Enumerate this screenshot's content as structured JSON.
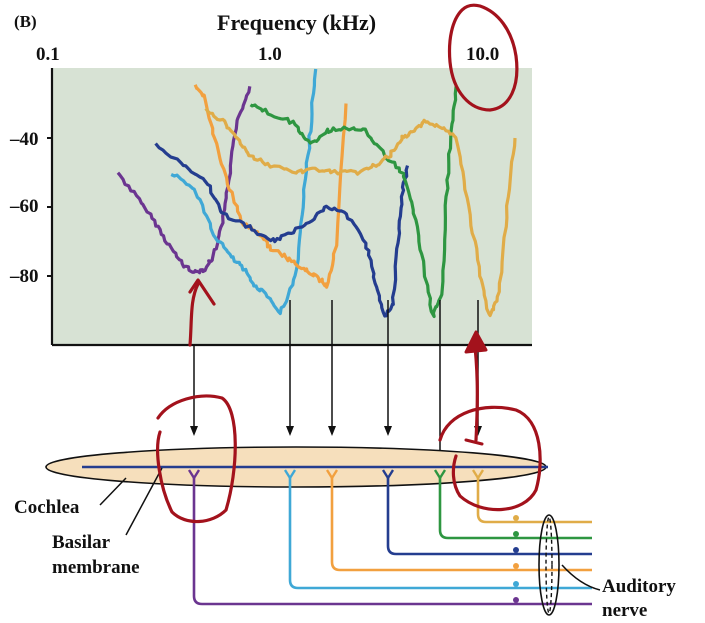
{
  "figure": {
    "panel_label": "(B)",
    "top_axis_title": "Frequency (kHz)",
    "x_ticks": [
      "0.1",
      "1.0",
      "10.0"
    ],
    "y_ticks": [
      "–40",
      "–60",
      "–80"
    ]
  },
  "labels": {
    "cochlea": "Cochlea",
    "basilar_line1": "Basilar",
    "basilar_line2": "membrane",
    "nerve_line1": "Auditory",
    "nerve_line2": "nerve"
  },
  "colors": {
    "plot_bg": "#d7e2d4",
    "cochlea_fill": "#f6dfbc",
    "annotation_red": "#a3121c",
    "purple": "#6b3590",
    "light_blue": "#3fa8d6",
    "orange": "#f2a03f",
    "dark_blue": "#243d8f",
    "green": "#2e9641",
    "gold": "#e0ac48"
  },
  "chart_data": {
    "type": "line",
    "x_scale": "log",
    "xlim": [
      0.1,
      20
    ],
    "ylim": [
      -100,
      -20
    ],
    "x_ticks": [
      0.1,
      1.0,
      10.0
    ],
    "y_ticks": [
      -40,
      -60,
      -80
    ],
    "grid": false,
    "series": [
      {
        "color": "purple",
        "x": [
          0.2,
          0.25,
          0.3,
          0.35,
          0.4,
          0.45,
          0.5,
          0.55,
          0.6,
          0.65,
          0.7,
          0.8
        ],
        "y": [
          -50,
          -58,
          -65,
          -72,
          -77,
          -79,
          -78,
          -74,
          -65,
          -50,
          -35,
          -25
        ]
      },
      {
        "color": "light_blue",
        "x": [
          0.35,
          0.45,
          0.55,
          0.65,
          0.75,
          0.85,
          0.95,
          1.1,
          1.3,
          1.4,
          1.5,
          1.6
        ],
        "y": [
          -50,
          -55,
          -68,
          -74,
          -78,
          -83,
          -85,
          -91,
          -80,
          -60,
          -40,
          -20
        ]
      },
      {
        "color": "orange",
        "x": [
          0.45,
          0.5,
          0.55,
          0.65,
          0.75,
          0.9,
          1.0,
          1.2,
          1.4,
          1.6,
          1.8,
          2.0,
          2.2
        ],
        "y": [
          -25,
          -28,
          -40,
          -55,
          -65,
          -68,
          -72,
          -75,
          -78,
          -80,
          -83,
          -70,
          -30
        ]
      },
      {
        "color": "dark_blue",
        "x": [
          0.3,
          0.4,
          0.5,
          0.6,
          0.8,
          1.0,
          1.2,
          1.5,
          1.8,
          2.2,
          2.7,
          3.0,
          3.3,
          3.6,
          3.8,
          4.0,
          4.2
        ],
        "y": [
          -42,
          -48,
          -52,
          -62,
          -66,
          -70,
          -68,
          -64,
          -60,
          -62,
          -70,
          -82,
          -92,
          -88,
          -70,
          -55,
          -48
        ]
      },
      {
        "color": "green",
        "x": [
          0.8,
          1.0,
          1.3,
          1.5,
          1.8,
          2.2,
          2.7,
          3.3,
          4.0,
          4.5,
          5.0,
          5.5,
          6.0,
          6.3,
          6.6,
          7.0
        ],
        "y": [
          -30,
          -33,
          -36,
          -42,
          -38,
          -37,
          -38,
          -45,
          -50,
          -62,
          -78,
          -92,
          -85,
          -60,
          -40,
          -25
        ]
      },
      {
        "color": "gold",
        "x": [
          0.5,
          0.6,
          0.7,
          0.8,
          1.0,
          1.3,
          1.6,
          2.0,
          2.5,
          3.0,
          3.5,
          4.0,
          4.5,
          5.0,
          6.0,
          7.0,
          8.0,
          9.0,
          10.0,
          11.0,
          12.0,
          13.0
        ],
        "y": [
          -32,
          -35,
          -40,
          -45,
          -48,
          -50,
          -49,
          -50,
          -50,
          -48,
          -45,
          -40,
          -38,
          -35,
          -37,
          -40,
          -60,
          -80,
          -92,
          -85,
          -60,
          -40
        ]
      }
    ]
  }
}
